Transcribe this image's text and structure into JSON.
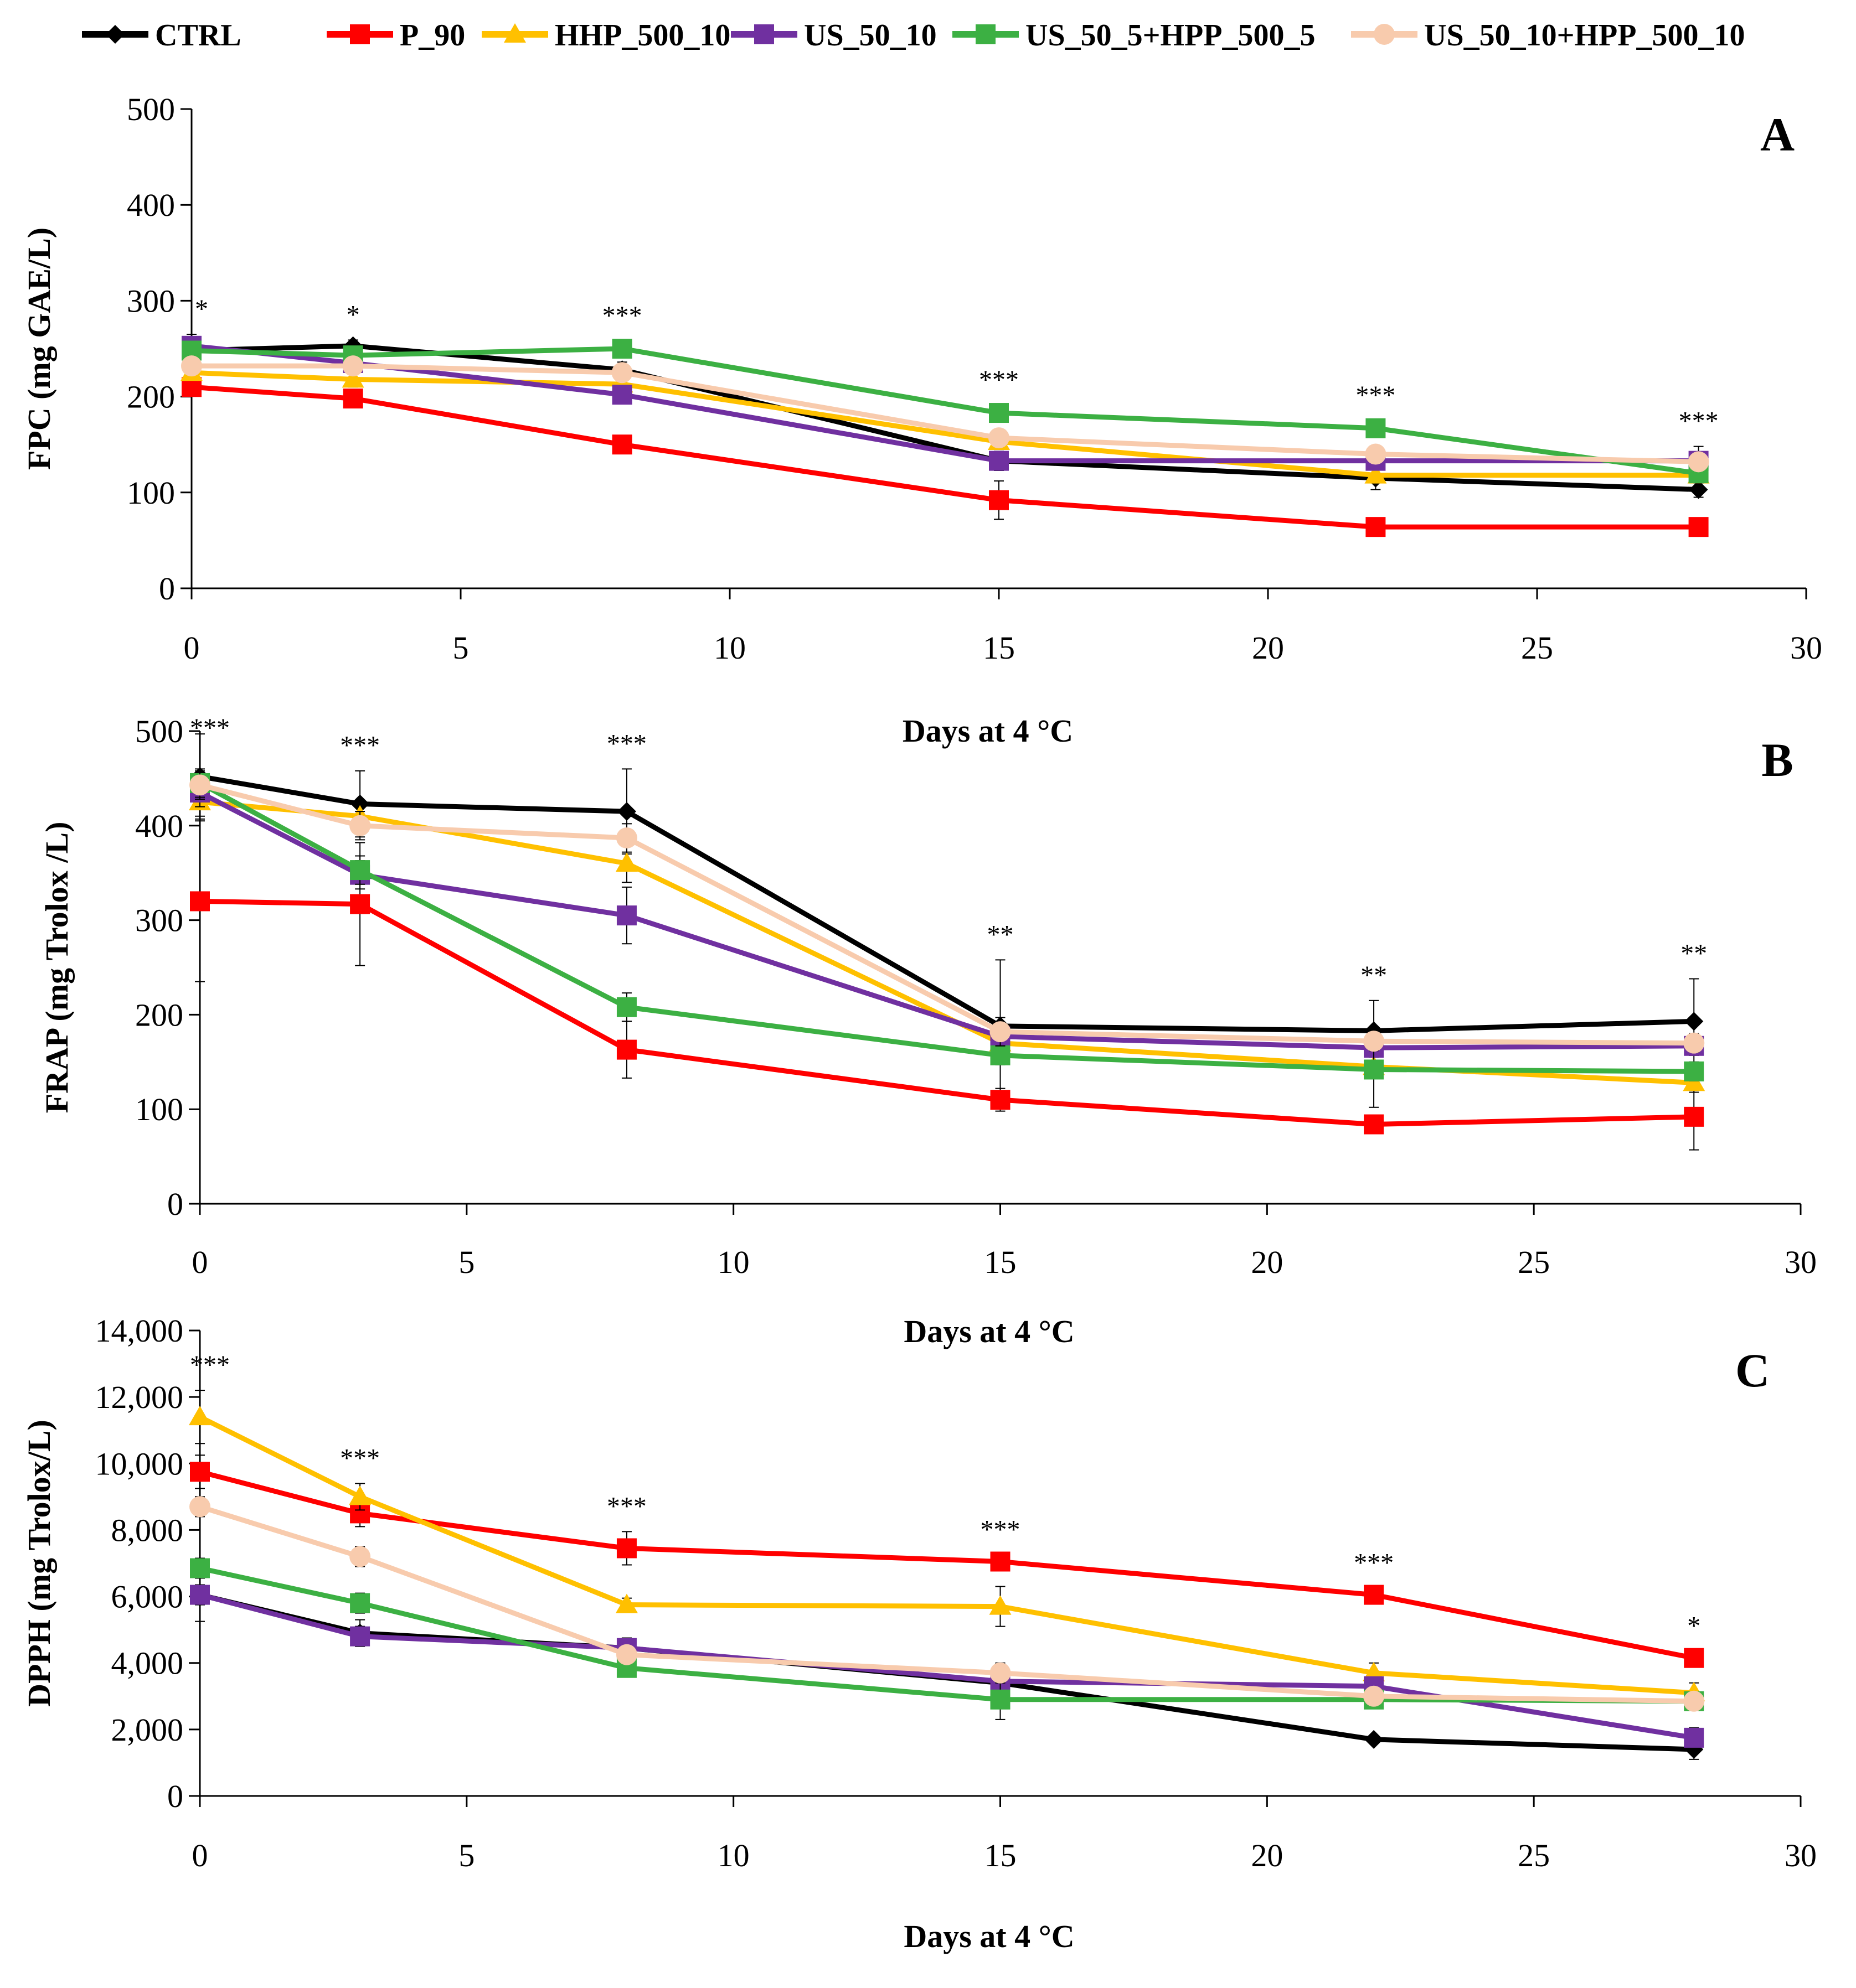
{
  "legend": [
    {
      "name": "CTRL",
      "color": "#000000",
      "marker": "diamond"
    },
    {
      "name": "P_90",
      "color": "#ff0000",
      "marker": "square"
    },
    {
      "name": "HHP_500_10",
      "color": "#ffc000",
      "marker": "triangle"
    },
    {
      "name": "US_50_10",
      "color": "#7030a0",
      "marker": "square"
    },
    {
      "name": "US_50_5+HPP_500_5",
      "color": "#3cb043",
      "marker": "square"
    },
    {
      "name": "US_50_10+HPP_500_10",
      "color": "#f8cbad",
      "marker": "circle"
    }
  ],
  "chart_data": [
    {
      "type": "line",
      "panel": "A",
      "ylabel": "FPC (mg GAE/L)",
      "xlabel": "",
      "ylim": [
        0,
        500
      ],
      "yticks": [
        "0",
        "100",
        "200",
        "300",
        "400",
        "500"
      ],
      "xlim": [
        0,
        30
      ],
      "xticks": [
        "0",
        "5",
        "10",
        "15",
        "20",
        "25",
        "30"
      ],
      "x": [
        0,
        3,
        8,
        15,
        22,
        28
      ],
      "significance": [
        "*",
        "*",
        "***",
        "***",
        "***",
        "***"
      ],
      "series": [
        {
          "name": "CTRL",
          "values": [
            248,
            253,
            228,
            133,
            115,
            103
          ],
          "errors": [
            12,
            6,
            8,
            8,
            12,
            8
          ]
        },
        {
          "name": "P_90",
          "values": [
            210,
            198,
            150,
            92,
            64,
            64
          ],
          "errors": [
            8,
            8,
            8,
            20,
            5,
            5
          ]
        },
        {
          "name": "HHP_500_10",
          "values": [
            225,
            218,
            213,
            153,
            118,
            118
          ],
          "errors": [
            8,
            8,
            8,
            8,
            8,
            8
          ]
        },
        {
          "name": "US_50_10",
          "values": [
            253,
            235,
            202,
            133,
            133,
            133
          ],
          "errors": [
            12,
            8,
            8,
            10,
            8,
            15
          ]
        },
        {
          "name": "US_50_5+HPP_500_5",
          "values": [
            248,
            243,
            250,
            183,
            167,
            120
          ],
          "errors": [
            8,
            8,
            8,
            8,
            8,
            10
          ]
        },
        {
          "name": "US_50_10+HPP_500_10",
          "values": [
            232,
            232,
            225,
            157,
            140,
            132
          ],
          "errors": [
            8,
            8,
            8,
            8,
            8,
            8
          ]
        }
      ]
    },
    {
      "type": "line",
      "panel": "B",
      "ylabel": "FRAP (mg Trolox /L)",
      "xlabel": "Days at 4 °C",
      "ylim": [
        0,
        500
      ],
      "yticks": [
        "0",
        "100",
        "200",
        "300",
        "400",
        "500"
      ],
      "xlim": [
        0,
        30
      ],
      "xticks": [
        "0",
        "5",
        "10",
        "15",
        "20",
        "25",
        "30"
      ],
      "x": [
        0,
        3,
        8,
        15,
        22,
        28
      ],
      "significance": [
        "***",
        "***",
        "***",
        "**",
        "**",
        "**"
      ],
      "series": [
        {
          "name": "CTRL",
          "values": [
            452,
            423,
            415,
            188,
            183,
            193
          ],
          "errors": [
            45,
            35,
            45,
            70,
            32,
            45
          ]
        },
        {
          "name": "P_90",
          "values": [
            320,
            317,
            163,
            110,
            84,
            92
          ],
          "errors": [
            85,
            65,
            30,
            12,
            8,
            35
          ]
        },
        {
          "name": "HHP_500_10",
          "values": [
            425,
            410,
            360,
            170,
            145,
            128
          ],
          "errors": [
            15,
            15,
            20,
            15,
            10,
            10
          ]
        },
        {
          "name": "US_50_10",
          "values": [
            435,
            348,
            305,
            177,
            165,
            167
          ],
          "errors": [
            15,
            15,
            30,
            15,
            10,
            10
          ]
        },
        {
          "name": "US_50_5+HPP_500_5",
          "values": [
            445,
            353,
            208,
            157,
            142,
            140
          ],
          "errors": [
            15,
            15,
            15,
            10,
            40,
            10
          ]
        },
        {
          "name": "US_50_10+HPP_500_10",
          "values": [
            443,
            400,
            387,
            182,
            172,
            170
          ],
          "errors": [
            15,
            15,
            15,
            15,
            10,
            10
          ]
        }
      ]
    },
    {
      "type": "line",
      "panel": "C",
      "ylabel": "DPPH (mg Trolox/L)",
      "xlabel": "Days at 4 °C",
      "ylim": [
        0,
        14000
      ],
      "yticks": [
        "0",
        "2,000",
        "4,000",
        "6,000",
        "8,000",
        "10,000",
        "12,000",
        "14,000"
      ],
      "xlim": [
        0,
        30
      ],
      "xticks": [
        "0",
        "5",
        "10",
        "15",
        "20",
        "25",
        "30"
      ],
      "x": [
        0,
        3,
        8,
        15,
        22,
        28
      ],
      "significance": [
        "***",
        "***",
        "***",
        "***",
        "***",
        "*"
      ],
      "series": [
        {
          "name": "CTRL",
          "values": [
            6050,
            4900,
            4450,
            3400,
            1700,
            1400
          ],
          "errors": [
            800,
            400,
            300,
            300,
            100,
            300
          ]
        },
        {
          "name": "P_90",
          "values": [
            9750,
            8500,
            7450,
            7050,
            6050,
            4150
          ],
          "errors": [
            500,
            400,
            500,
            200,
            200,
            200
          ]
        },
        {
          "name": "HHP_500_10",
          "values": [
            11400,
            9000,
            5750,
            5700,
            3700,
            3100
          ],
          "errors": [
            800,
            400,
            200,
            600,
            300,
            300
          ]
        },
        {
          "name": "US_50_10",
          "values": [
            6050,
            4800,
            4450,
            3450,
            3300,
            1750
          ],
          "errors": [
            300,
            300,
            300,
            300,
            200,
            300
          ]
        },
        {
          "name": "US_50_5+HPP_500_5",
          "values": [
            6850,
            5800,
            3850,
            2900,
            2900,
            2850
          ],
          "errors": [
            300,
            300,
            200,
            600,
            200,
            200
          ]
        },
        {
          "name": "US_50_10+HPP_500_10",
          "values": [
            8700,
            7200,
            4250,
            3700,
            3000,
            2850
          ],
          "errors": [
            300,
            300,
            200,
            300,
            200,
            200
          ]
        }
      ]
    }
  ]
}
